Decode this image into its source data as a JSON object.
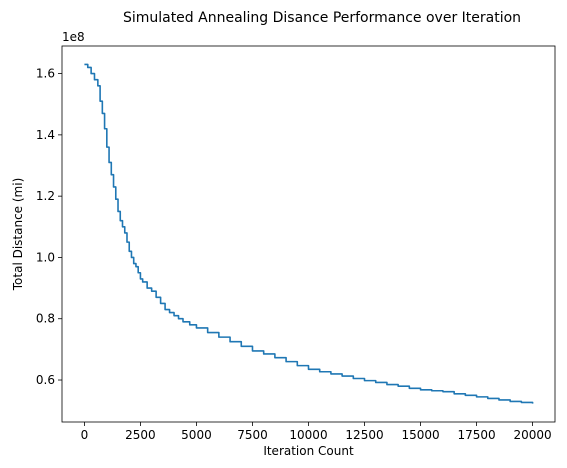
{
  "chart_data": {
    "type": "line",
    "title": "Simulated Annealing Disance Performance over Iteration",
    "xlabel": "Iteration Count",
    "ylabel": "Total Distance (mi)",
    "y_offset_label": "1e8",
    "xlim": [
      -1000,
      21000
    ],
    "ylim": [
      0.463,
      1.69
    ],
    "xticks": [
      0,
      2500,
      5000,
      7500,
      10000,
      12500,
      15000,
      17500,
      20000
    ],
    "xtick_labels": [
      "0",
      "2500",
      "5000",
      "7500",
      "10000",
      "12500",
      "15000",
      "17500",
      "20000"
    ],
    "yticks": [
      0.6,
      0.8,
      1.0,
      1.2,
      1.4,
      1.6
    ],
    "ytick_labels": [
      "0.6",
      "0.8",
      "1.0",
      "1.2",
      "1.4",
      "1.6"
    ],
    "grid": false,
    "legend": "none",
    "series": [
      {
        "color": "#1f77b4",
        "x": [
          0,
          150,
          300,
          450,
          600,
          700,
          800,
          900,
          1000,
          1100,
          1200,
          1300,
          1400,
          1500,
          1600,
          1700,
          1800,
          1900,
          2000,
          2100,
          2200,
          2300,
          2400,
          2500,
          2600,
          2800,
          3000,
          3200,
          3400,
          3600,
          3800,
          4000,
          4200,
          4400,
          4700,
          5000,
          5500,
          6000,
          6500,
          7000,
          7500,
          8000,
          8500,
          9000,
          9500,
          10000,
          10500,
          11000,
          11500,
          12000,
          12500,
          13000,
          13500,
          14000,
          14500,
          15000,
          15500,
          16000,
          16500,
          17000,
          17500,
          18000,
          18500,
          19000,
          19500,
          20000
        ],
        "y": [
          1.63,
          1.62,
          1.6,
          1.58,
          1.56,
          1.51,
          1.47,
          1.42,
          1.36,
          1.31,
          1.27,
          1.23,
          1.19,
          1.15,
          1.12,
          1.1,
          1.08,
          1.05,
          1.02,
          1.0,
          0.98,
          0.97,
          0.95,
          0.93,
          0.92,
          0.9,
          0.89,
          0.87,
          0.85,
          0.83,
          0.82,
          0.81,
          0.8,
          0.79,
          0.78,
          0.77,
          0.755,
          0.74,
          0.725,
          0.71,
          0.695,
          0.685,
          0.673,
          0.66,
          0.647,
          0.635,
          0.627,
          0.62,
          0.613,
          0.605,
          0.598,
          0.592,
          0.585,
          0.58,
          0.573,
          0.568,
          0.565,
          0.562,
          0.555,
          0.55,
          0.545,
          0.54,
          0.535,
          0.53,
          0.527,
          0.523
        ]
      }
    ]
  }
}
